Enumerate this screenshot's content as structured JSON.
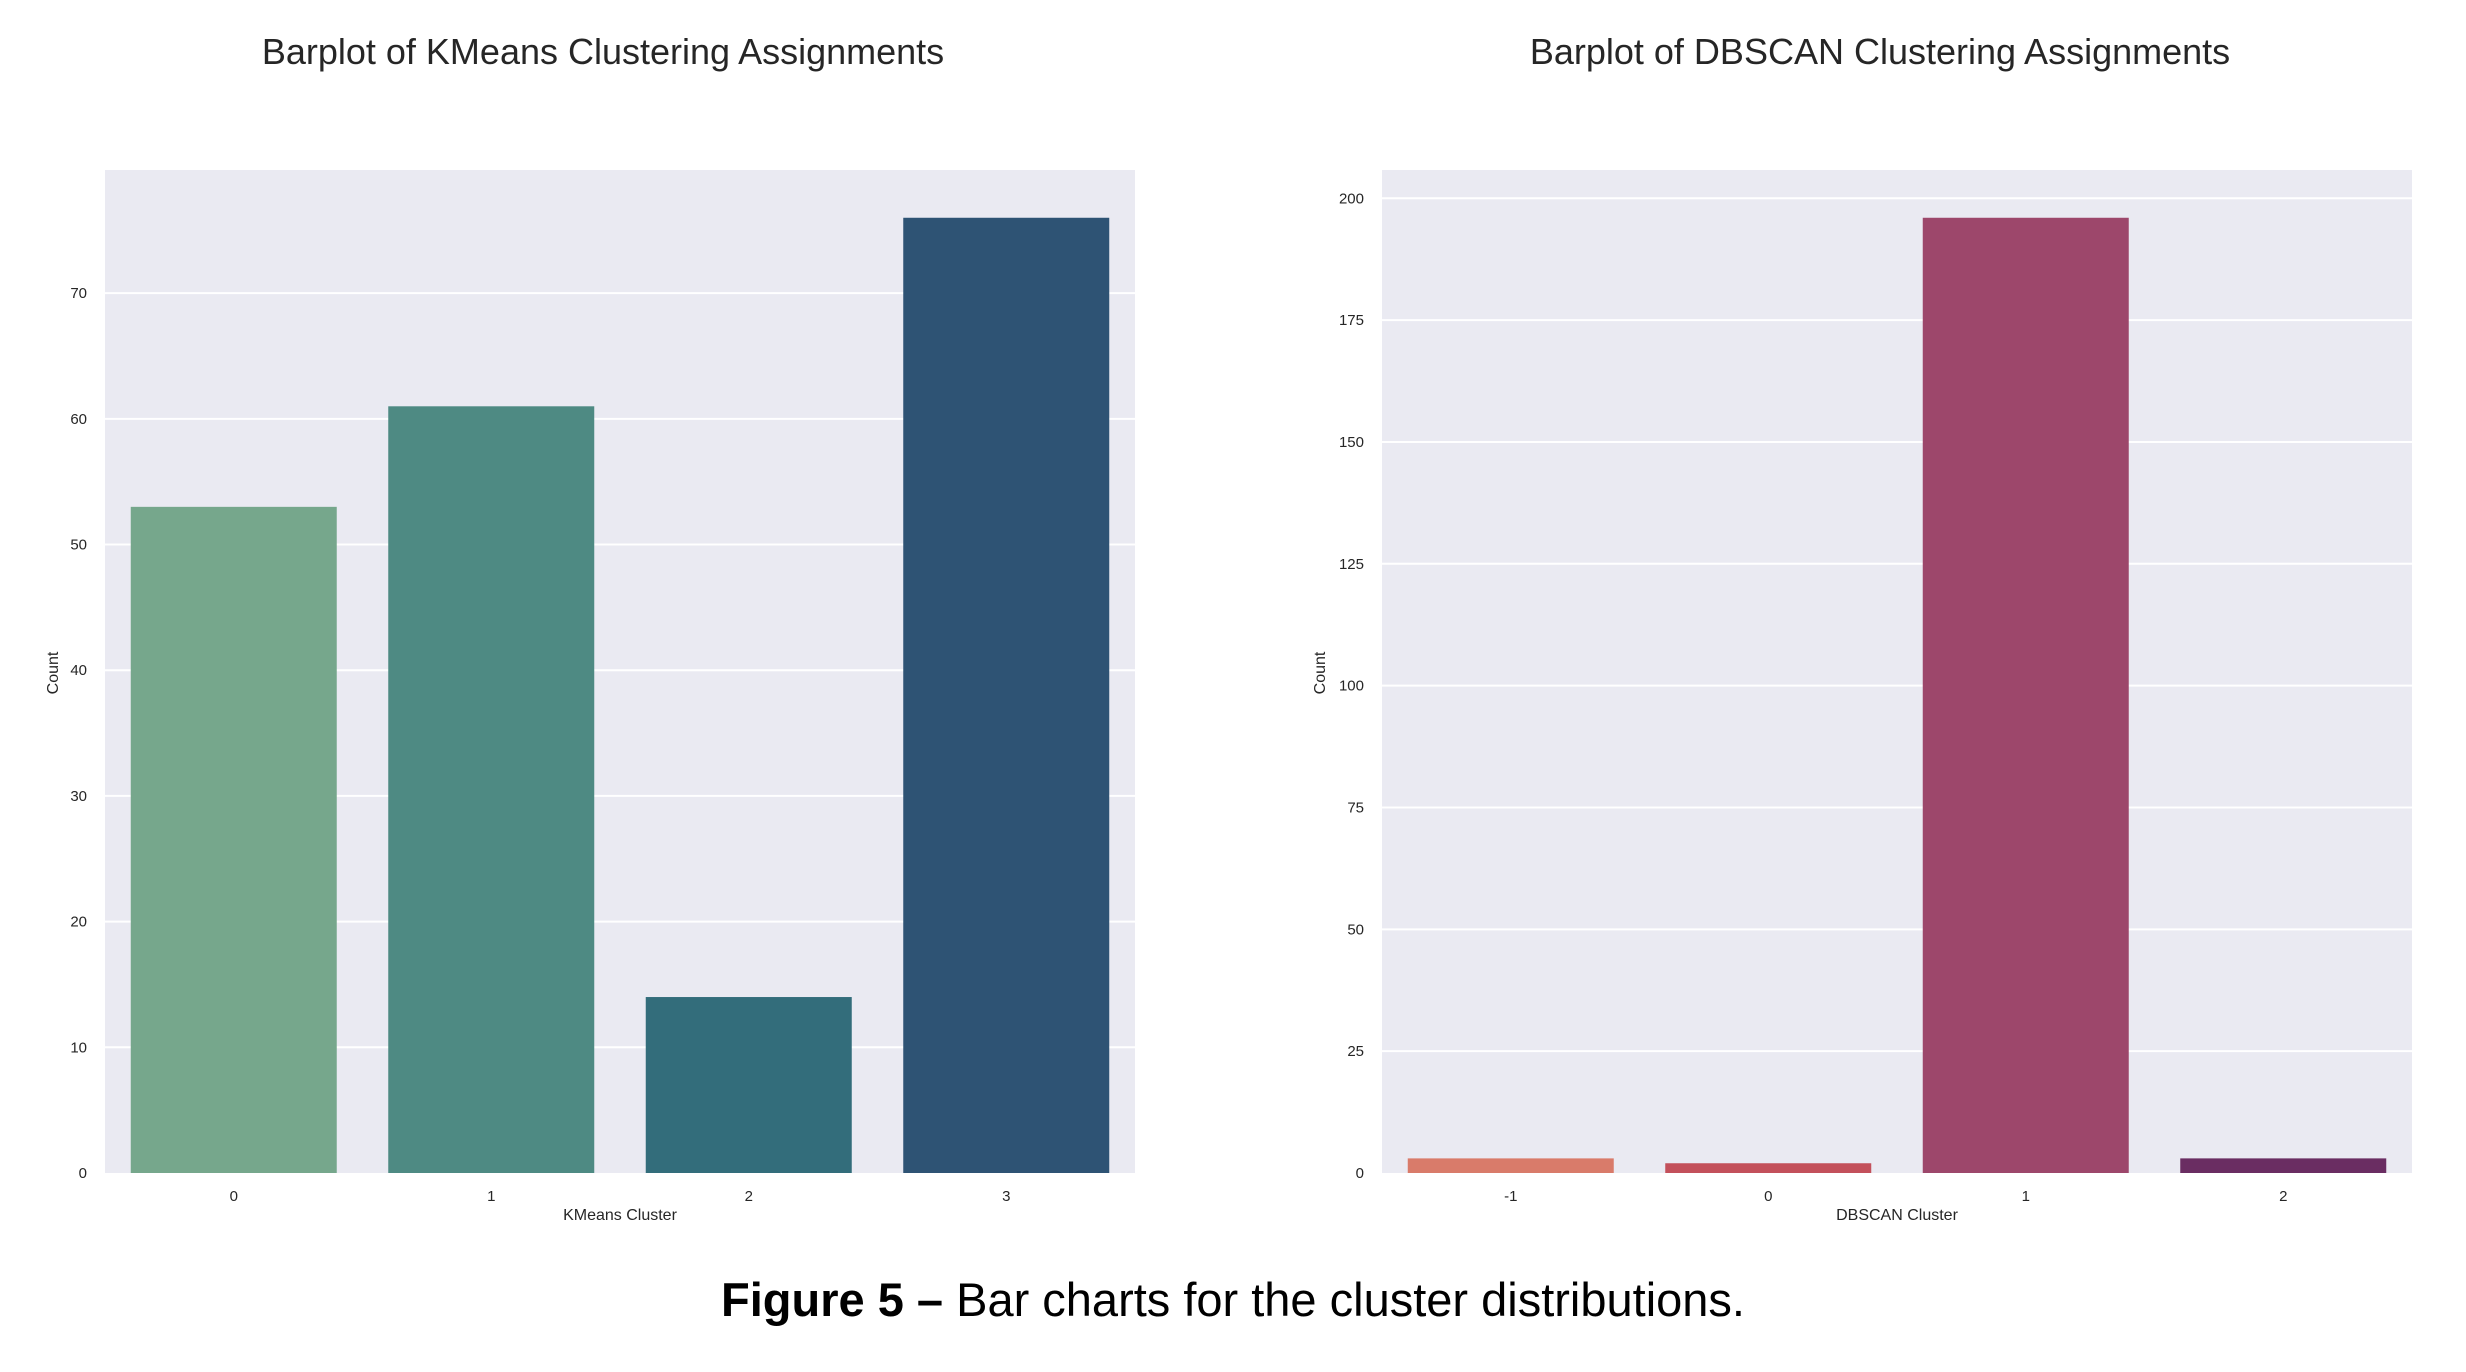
{
  "chart_data": [
    {
      "type": "bar",
      "title": "Barplot of KMeans Clustering Assignments",
      "xlabel": "KMeans Cluster",
      "ylabel": "Count",
      "categories": [
        "0",
        "1",
        "2",
        "3"
      ],
      "values": [
        53,
        61,
        14,
        76
      ],
      "colors": [
        "#76a78c",
        "#4e8a83",
        "#336d7b",
        "#2e5374"
      ],
      "yticks": [
        0,
        10,
        20,
        30,
        40,
        50,
        60,
        70
      ],
      "ylim": [
        0,
        79.8
      ],
      "grid": true
    },
    {
      "type": "bar",
      "title": "Barplot of DBSCAN Clustering Assignments",
      "xlabel": "DBSCAN Cluster",
      "ylabel": "Count",
      "categories": [
        "-1",
        "0",
        "1",
        "2"
      ],
      "values": [
        3,
        2,
        196,
        3
      ],
      "colors": [
        "#d97b6a",
        "#c3505b",
        "#9d476b",
        "#6a2d62"
      ],
      "yticks": [
        0,
        25,
        50,
        75,
        100,
        125,
        150,
        175,
        200
      ],
      "ylim": [
        0,
        205.8
      ],
      "grid": true
    }
  ],
  "caption": {
    "label": "Figure 5 –",
    "text": " Bar charts for the cluster distributions."
  }
}
